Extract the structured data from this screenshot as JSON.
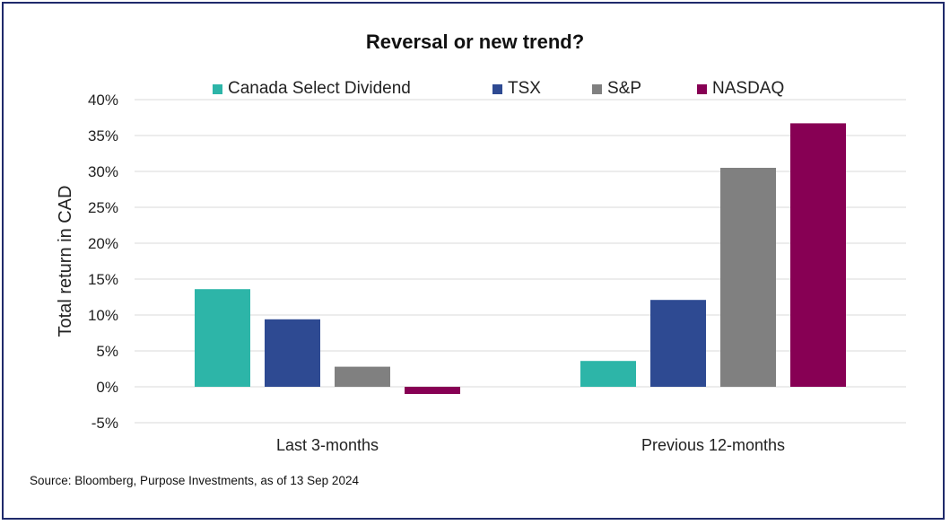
{
  "chart_data": {
    "type": "bar",
    "title": "Reversal or new trend?",
    "ylabel": "Total return in CAD",
    "xlabel": "",
    "categories": [
      "Last 3-months",
      "Previous 12-months"
    ],
    "series": [
      {
        "name": "Canada Select Dividend",
        "color": "#2db5a8",
        "values": [
          13.6,
          3.6
        ]
      },
      {
        "name": "TSX",
        "color": "#2e4a92",
        "values": [
          9.4,
          12.1
        ]
      },
      {
        "name": "S&P",
        "color": "#808080",
        "values": [
          2.8,
          30.5
        ]
      },
      {
        "name": "NASDAQ",
        "color": "#870054",
        "values": [
          -1.0,
          36.7
        ]
      }
    ],
    "ylim": [
      -5,
      40
    ],
    "yticks": [
      -5,
      0,
      5,
      10,
      15,
      20,
      25,
      30,
      35,
      40
    ],
    "ytick_labels": [
      "-5%",
      "0%",
      "5%",
      "10%",
      "15%",
      "20%",
      "25%",
      "30%",
      "35%",
      "40%"
    ],
    "grid": true,
    "legend_position": "top"
  },
  "source": "Source: Bloomberg, Purpose Investments, as of 13 Sep 2024",
  "colors": {
    "border": "#1f2a6b",
    "grid": "#d9d9d9"
  }
}
